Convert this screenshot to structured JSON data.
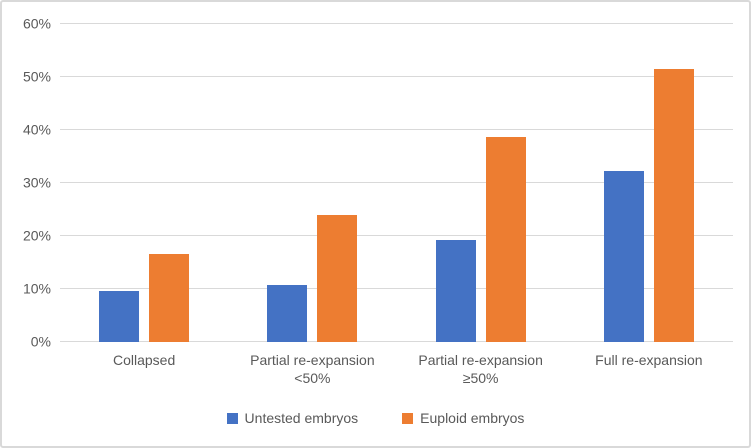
{
  "chart_data": {
    "type": "bar",
    "title": "",
    "xlabel": "",
    "ylabel": "",
    "categories": [
      "Collapsed",
      "Partial re-expansion <50%",
      "Partial re-expansion ≥50%",
      "Full re-expansion"
    ],
    "series": [
      {
        "name": "Untested embryos",
        "color": "#4472C4",
        "values": [
          9.7,
          10.8,
          19.3,
          32.3
        ]
      },
      {
        "name": "Euploid embryos",
        "color": "#ED7D31",
        "values": [
          16.7,
          24.0,
          38.6,
          51.6
        ]
      }
    ],
    "ylim": [
      0,
      60
    ],
    "ytick_step": 10,
    "ytick_labels": [
      "0%",
      "10%",
      "20%",
      "30%",
      "40%",
      "50%",
      "60%"
    ],
    "grid": true,
    "legend_position": "bottom"
  },
  "colors": {
    "background": "#FFFFFF",
    "border": "#D9D9D9",
    "gridline": "#D9D9D9",
    "axis_text": "#595959",
    "series_untested": "#4472C4",
    "series_euploid": "#ED7D31"
  }
}
